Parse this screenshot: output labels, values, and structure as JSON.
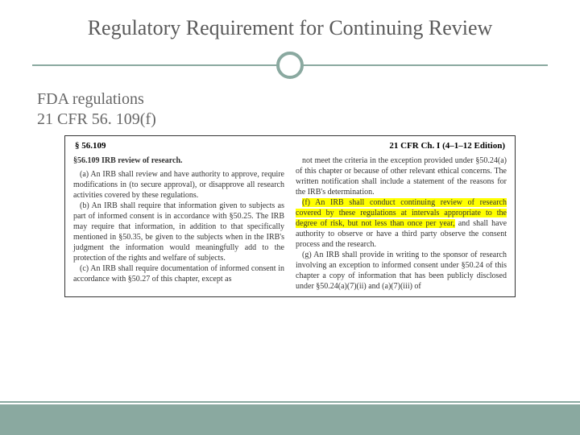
{
  "colors": {
    "accent": "#8aa9a0",
    "title_color": "#5a5a5a",
    "text_color": "#666666",
    "highlight": "#ffff00",
    "box_border": "#333333",
    "background": "#ffffff"
  },
  "typography": {
    "title_fontsize": 26,
    "subtitle_fontsize": 20,
    "reg_fontsize": 10,
    "reg_header_fontsize": 11
  },
  "title": "Regulatory Requirement for Continuing Review",
  "subtitle_line1": "FDA regulations",
  "subtitle_line2": "21 CFR 56. 109(f)",
  "reg_header_left": "§ 56.109",
  "reg_header_right": "21 CFR Ch. I (4–1–12 Edition)",
  "reg_section_title": "§56.109  IRB review of research.",
  "para_a": "(a) An IRB shall review and have authority to approve, require modifications in (to secure approval), or disapprove all research activities covered by these regulations.",
  "para_b": "(b) An IRB shall require that information given to subjects as part of informed consent is in accordance with §50.25. The IRB may require that information, in addition to that specifically mentioned in §50.35, be given to the subjects when in the IRB's judgment the information would meaningfully add to the protection of the rights and welfare of subjects.",
  "para_c": "(c) An IRB shall require documentation of informed consent in accordance with §50.27 of this chapter, except as",
  "para_top_right": "not meet the criteria in the exception provided under §50.24(a) of this chapter or because of other relevant ethical concerns. The written notification shall include a statement of the reasons for the IRB's determination.",
  "para_f_highlight": "(f) An IRB shall conduct continuing review of research covered by these regulations at intervals appropriate to the degree of risk, but not less than once per year,",
  "para_f_rest": " and shall have authority to observe or have a third party observe the consent process and the research.",
  "para_g": "(g) An IRB shall provide in writing to the sponsor of research involving an exception to informed consent under §50.24 of this chapter a copy of information that has been publicly disclosed under §50.24(a)(7)(ii) and (a)(7)(iii) of"
}
